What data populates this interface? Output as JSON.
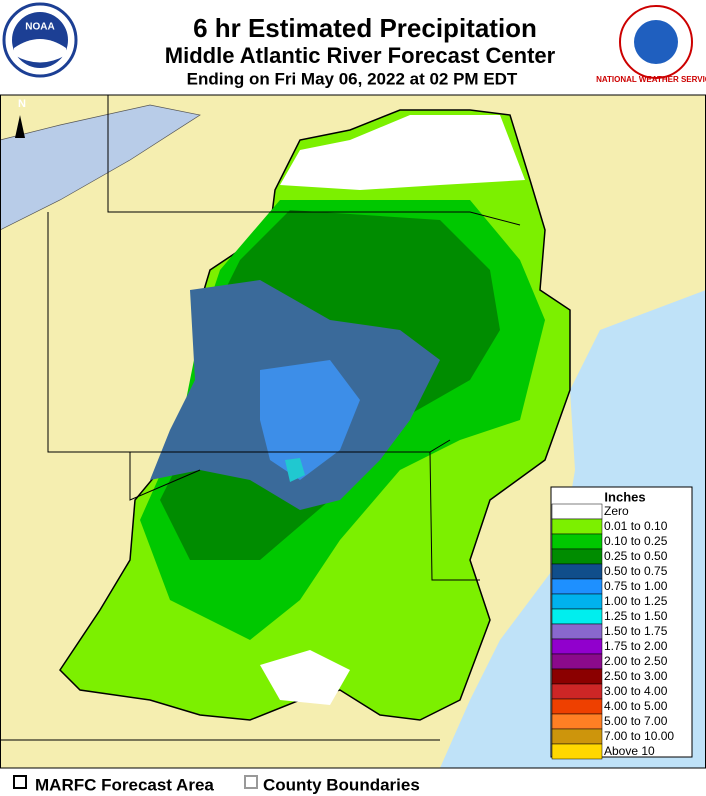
{
  "header": {
    "title": "6 hr Estimated Precipitation",
    "subtitle": "Middle Atlantic River Forecast Center",
    "valid_time": "Ending on Fri May 06, 2022 at 02 PM EDT"
  },
  "logos": {
    "left": "NOAA",
    "right": "NATIONAL WEATHER SERVICE"
  },
  "map": {
    "north_arrow": "N"
  },
  "legend": {
    "title": "Inches",
    "items": [
      {
        "label": "Zero",
        "color": "#ffffff"
      },
      {
        "label": "0.01 to 0.10",
        "color": "#7cf000"
      },
      {
        "label": "0.10 to 0.25",
        "color": "#00c800"
      },
      {
        "label": "0.25 to 0.50",
        "color": "#008c00"
      },
      {
        "label": "0.50 to 0.75",
        "color": "#104e8b"
      },
      {
        "label": "0.75 to 1.00",
        "color": "#1e90ff"
      },
      {
        "label": "1.00 to 1.25",
        "color": "#00b2ee"
      },
      {
        "label": "1.25 to 1.50",
        "color": "#00eeee"
      },
      {
        "label": "1.50 to 1.75",
        "color": "#8968cd"
      },
      {
        "label": "1.75 to 2.00",
        "color": "#9100cd"
      },
      {
        "label": "2.00 to 2.50",
        "color": "#8b0a8b"
      },
      {
        "label": "2.50 to 3.00",
        "color": "#8b0000"
      },
      {
        "label": "3.00 to 4.00",
        "color": "#cd2626"
      },
      {
        "label": "4.00 to 5.00",
        "color": "#ee4000"
      },
      {
        "label": "5.00 to 7.00",
        "color": "#ff7f24"
      },
      {
        "label": "7.00 to 10.00",
        "color": "#cd950c"
      },
      {
        "label": "Above 10",
        "color": "#ffd700"
      }
    ]
  },
  "footer": {
    "items": [
      "MARFC Forecast Area",
      "County Boundaries"
    ]
  }
}
